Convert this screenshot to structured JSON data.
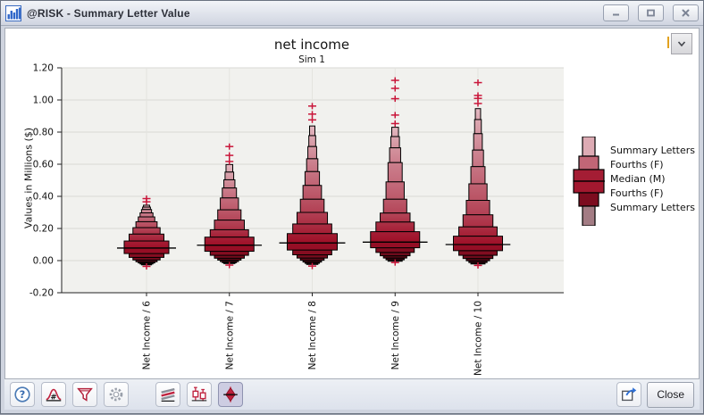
{
  "window": {
    "title": "@RISK - Summary Letter Value",
    "controls": [
      "minimize",
      "maximize",
      "close"
    ]
  },
  "chart_data": {
    "type": "letter_value",
    "title": "net income",
    "subtitle": "Sim 1",
    "ylabel": "Values in Millions ($)",
    "ylim": [
      -0.2,
      1.2
    ],
    "yticks": [
      "1.20",
      "1.00",
      "0.80",
      "0.60",
      "0.40",
      "0.20",
      "0.00",
      "-0.20"
    ],
    "categories": [
      "Net Income / 6",
      "Net Income / 7",
      "Net Income / 8",
      "Net Income / 9",
      "Net Income / 10"
    ],
    "legend_items": [
      "Summary Letters",
      "Fourths (F)",
      "Median (M)",
      "Fourths (F)",
      "Summary Letters"
    ],
    "series": [
      {
        "name": "Net Income / 6",
        "median": 0.078,
        "upper": [
          0.122,
          0.165,
          0.205,
          0.242,
          0.272,
          0.297,
          0.318,
          0.333,
          0.345
        ],
        "lower": [
          0.044,
          0.02,
          0.004,
          -0.007,
          -0.015,
          -0.021,
          -0.026
        ],
        "outliers_upper": [
          0.366,
          0.386
        ],
        "outliers_lower": [
          -0.036
        ],
        "max_width": 50
      },
      {
        "name": "Net Income / 7",
        "median": 0.096,
        "upper": [
          0.146,
          0.192,
          0.252,
          0.316,
          0.39,
          0.452,
          0.503,
          0.551,
          0.598
        ],
        "lower": [
          0.058,
          0.033,
          0.015,
          0.003,
          -0.006,
          -0.013,
          -0.018
        ],
        "outliers_upper": [
          0.617,
          0.655,
          0.71
        ],
        "outliers_lower": [
          -0.028
        ],
        "max_width": 55
      },
      {
        "name": "Net Income / 8",
        "median": 0.11,
        "upper": [
          0.168,
          0.228,
          0.3,
          0.382,
          0.468,
          0.554,
          0.634,
          0.71,
          0.778,
          0.838
        ],
        "lower": [
          0.066,
          0.036,
          0.016,
          0.002,
          -0.009,
          -0.017,
          -0.024
        ],
        "outliers_upper": [
          0.876,
          0.912,
          0.962
        ],
        "outliers_lower": [
          -0.034
        ],
        "max_width": 56
      },
      {
        "name": "Net Income / 9",
        "median": 0.115,
        "upper": [
          0.18,
          0.24,
          0.296,
          0.382,
          0.49,
          0.61,
          0.702,
          0.772,
          0.83
        ],
        "lower": [
          0.08,
          0.051,
          0.03,
          0.016,
          0.005,
          -0.004
        ],
        "outliers_upper": [
          0.853,
          0.906,
          1.008,
          1.072,
          1.122
        ],
        "outliers_lower": [
          -0.012
        ],
        "max_width": 55
      },
      {
        "name": "Net Income / 10",
        "median": 0.1,
        "upper": [
          0.152,
          0.21,
          0.285,
          0.375,
          0.478,
          0.585,
          0.688,
          0.79,
          0.878,
          0.946
        ],
        "lower": [
          0.062,
          0.033,
          0.013,
          -0.001,
          -0.012,
          -0.021
        ],
        "outliers_upper": [
          0.978,
          1.01,
          1.028,
          1.108
        ],
        "outliers_lower": [
          -0.03
        ],
        "max_width": 55
      }
    ],
    "colors": {
      "near_median": "#9e0f27",
      "tail": "#e4bcc4",
      "lower_dark": "#2b060c",
      "outlier": "#c9163a",
      "plot_bg": "#f1f1ee",
      "grid": "#d9d9d4",
      "grid_vertical": "#e4e4df",
      "axis": "#222222"
    }
  },
  "dropdown": {
    "icon": "chevron-down"
  },
  "toolbar": {
    "buttons": [
      {
        "name": "help"
      },
      {
        "name": "distribution-format"
      },
      {
        "name": "filter"
      },
      {
        "name": "settings"
      },
      {
        "name": "overlay-style"
      },
      {
        "name": "box-plot"
      },
      {
        "name": "letter-value-plot",
        "active": true
      }
    ],
    "export_name": "export",
    "close_label": "Close"
  }
}
